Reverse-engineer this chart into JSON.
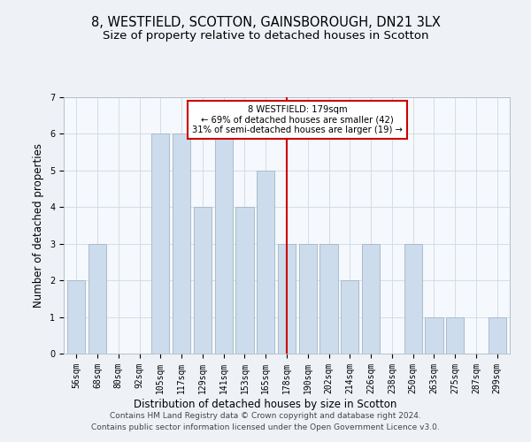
{
  "title": "8, WESTFIELD, SCOTTON, GAINSBOROUGH, DN21 3LX",
  "subtitle": "Size of property relative to detached houses in Scotton",
  "xlabel": "Distribution of detached houses by size in Scotton",
  "ylabel": "Number of detached properties",
  "categories": [
    "56sqm",
    "68sqm",
    "80sqm",
    "92sqm",
    "105sqm",
    "117sqm",
    "129sqm",
    "141sqm",
    "153sqm",
    "165sqm",
    "178sqm",
    "190sqm",
    "202sqm",
    "214sqm",
    "226sqm",
    "238sqm",
    "250sqm",
    "263sqm",
    "275sqm",
    "287sqm",
    "299sqm"
  ],
  "values": [
    2,
    3,
    0,
    0,
    6,
    6,
    4,
    6,
    4,
    5,
    3,
    3,
    3,
    2,
    3,
    0,
    3,
    1,
    1,
    0,
    1
  ],
  "bar_color": "#ccdcec",
  "bar_edge_color": "#aabccc",
  "annotation_text": "8 WESTFIELD: 179sqm\n← 69% of detached houses are smaller (42)\n31% of semi-detached houses are larger (19) →",
  "annotation_box_color": "#ffffff",
  "annotation_box_edge": "#cc0000",
  "vline_color": "#cc0000",
  "vline_x": 10,
  "ylim": [
    0,
    7
  ],
  "yticks": [
    0,
    1,
    2,
    3,
    4,
    5,
    6,
    7
  ],
  "footer_line1": "Contains HM Land Registry data © Crown copyright and database right 2024.",
  "footer_line2": "Contains public sector information licensed under the Open Government Licence v3.0.",
  "bg_color": "#eef2f7",
  "plot_bg_color": "#f5f8fc",
  "title_fontsize": 10.5,
  "subtitle_fontsize": 9.5,
  "xlabel_fontsize": 8.5,
  "ylabel_fontsize": 8.5,
  "tick_fontsize": 7,
  "footer_fontsize": 6.5,
  "grid_color": "#d0d8e0"
}
